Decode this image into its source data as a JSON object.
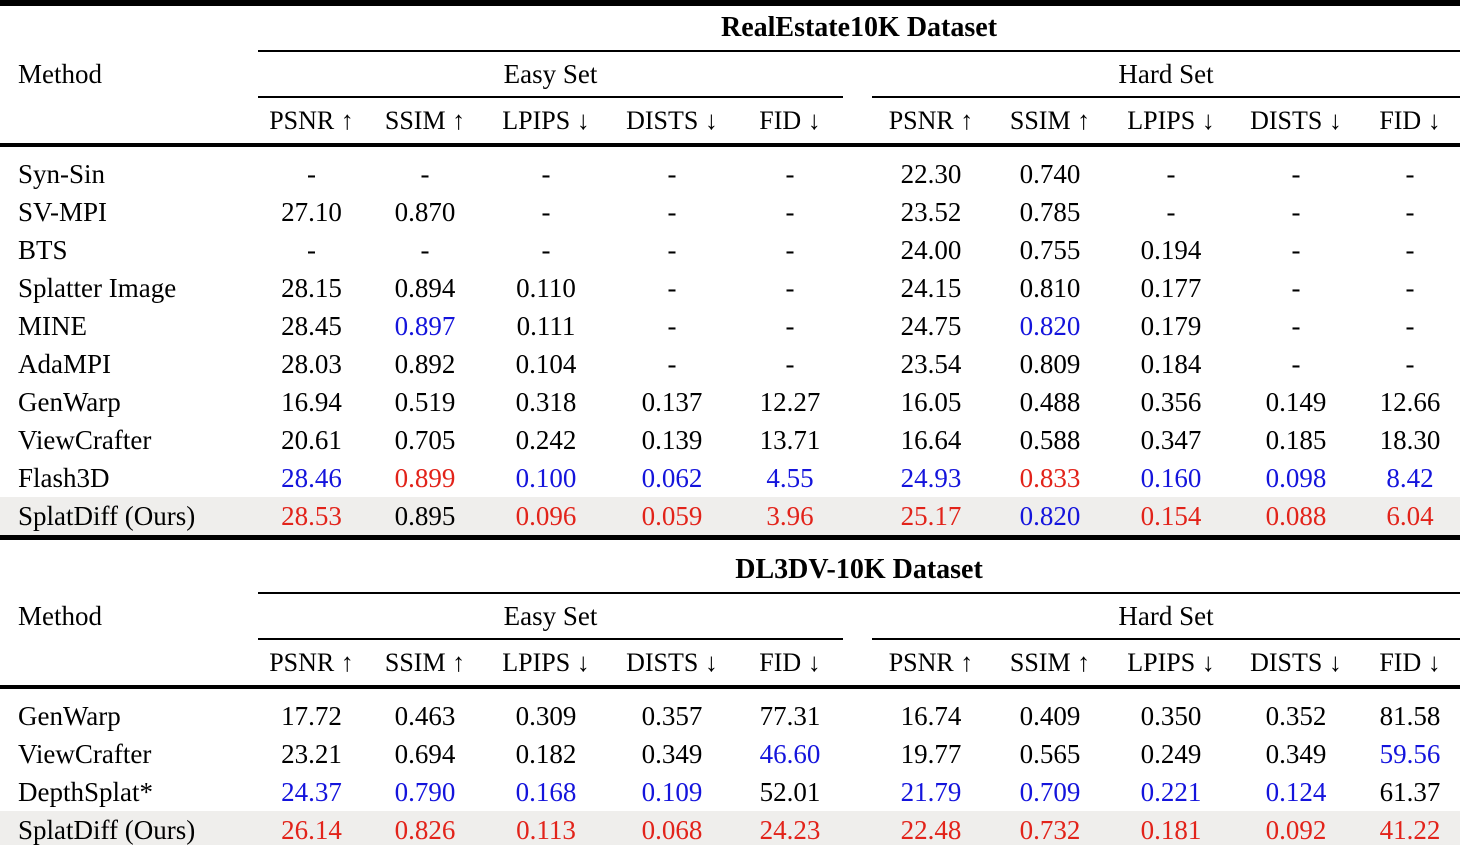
{
  "colors": {
    "red": "#e2231a",
    "blue": "#1414dc",
    "text": "#000000",
    "highlight_row": "#efeeec",
    "background": "#ffffff"
  },
  "method_header": "Method",
  "set_headers": [
    "Easy Set",
    "Hard Set"
  ],
  "metrics": [
    "PSNR ↑",
    "SSIM ↑",
    "LPIPS ↓",
    "DISTS ↓",
    "FID ↓"
  ],
  "tables": [
    {
      "dataset_title": "RealEstate10K Dataset",
      "rows": [
        {
          "method": "Syn-Sin",
          "highlight": false,
          "values": [
            {
              "t": "-"
            },
            {
              "t": "-"
            },
            {
              "t": "-"
            },
            {
              "t": "-"
            },
            {
              "t": "-"
            },
            {
              "t": "22.30"
            },
            {
              "t": "0.740"
            },
            {
              "t": "-"
            },
            {
              "t": "-"
            },
            {
              "t": "-"
            }
          ]
        },
        {
          "method": "SV-MPI",
          "highlight": false,
          "values": [
            {
              "t": "27.10"
            },
            {
              "t": "0.870"
            },
            {
              "t": "-"
            },
            {
              "t": "-"
            },
            {
              "t": "-"
            },
            {
              "t": "23.52"
            },
            {
              "t": "0.785"
            },
            {
              "t": "-"
            },
            {
              "t": "-"
            },
            {
              "t": "-"
            }
          ]
        },
        {
          "method": "BTS",
          "highlight": false,
          "values": [
            {
              "t": "-"
            },
            {
              "t": "-"
            },
            {
              "t": "-"
            },
            {
              "t": "-"
            },
            {
              "t": "-"
            },
            {
              "t": "24.00"
            },
            {
              "t": "0.755"
            },
            {
              "t": "0.194"
            },
            {
              "t": "-"
            },
            {
              "t": "-"
            }
          ]
        },
        {
          "method": "Splatter Image",
          "highlight": false,
          "values": [
            {
              "t": "28.15"
            },
            {
              "t": "0.894"
            },
            {
              "t": "0.110"
            },
            {
              "t": "-"
            },
            {
              "t": "-"
            },
            {
              "t": "24.15"
            },
            {
              "t": "0.810"
            },
            {
              "t": "0.177"
            },
            {
              "t": "-"
            },
            {
              "t": "-"
            }
          ]
        },
        {
          "method": "MINE",
          "highlight": false,
          "values": [
            {
              "t": "28.45"
            },
            {
              "t": "0.897",
              "c": "blue"
            },
            {
              "t": "0.111"
            },
            {
              "t": "-"
            },
            {
              "t": "-"
            },
            {
              "t": "24.75"
            },
            {
              "t": "0.820",
              "c": "blue"
            },
            {
              "t": "0.179"
            },
            {
              "t": "-"
            },
            {
              "t": "-"
            }
          ]
        },
        {
          "method": "AdaMPI",
          "highlight": false,
          "values": [
            {
              "t": "28.03"
            },
            {
              "t": "0.892"
            },
            {
              "t": "0.104"
            },
            {
              "t": "-"
            },
            {
              "t": "-"
            },
            {
              "t": "23.54"
            },
            {
              "t": "0.809"
            },
            {
              "t": "0.184"
            },
            {
              "t": "-"
            },
            {
              "t": "-"
            }
          ]
        },
        {
          "method": "GenWarp",
          "highlight": false,
          "values": [
            {
              "t": "16.94"
            },
            {
              "t": "0.519"
            },
            {
              "t": "0.318"
            },
            {
              "t": "0.137"
            },
            {
              "t": "12.27"
            },
            {
              "t": "16.05"
            },
            {
              "t": "0.488"
            },
            {
              "t": "0.356"
            },
            {
              "t": "0.149"
            },
            {
              "t": "12.66"
            }
          ]
        },
        {
          "method": "ViewCrafter",
          "highlight": false,
          "values": [
            {
              "t": "20.61"
            },
            {
              "t": "0.705"
            },
            {
              "t": "0.242"
            },
            {
              "t": "0.139"
            },
            {
              "t": "13.71"
            },
            {
              "t": "16.64"
            },
            {
              "t": "0.588"
            },
            {
              "t": "0.347"
            },
            {
              "t": "0.185"
            },
            {
              "t": "18.30"
            }
          ]
        },
        {
          "method": "Flash3D",
          "highlight": false,
          "values": [
            {
              "t": "28.46",
              "c": "blue"
            },
            {
              "t": "0.899",
              "c": "red"
            },
            {
              "t": "0.100",
              "c": "blue"
            },
            {
              "t": "0.062",
              "c": "blue"
            },
            {
              "t": "4.55",
              "c": "blue"
            },
            {
              "t": "24.93",
              "c": "blue"
            },
            {
              "t": "0.833",
              "c": "red"
            },
            {
              "t": "0.160",
              "c": "blue"
            },
            {
              "t": "0.098",
              "c": "blue"
            },
            {
              "t": "8.42",
              "c": "blue"
            }
          ]
        },
        {
          "method": "SplatDiff (Ours)",
          "highlight": true,
          "values": [
            {
              "t": "28.53",
              "c": "red"
            },
            {
              "t": "0.895"
            },
            {
              "t": "0.096",
              "c": "red"
            },
            {
              "t": "0.059",
              "c": "red"
            },
            {
              "t": "3.96",
              "c": "red"
            },
            {
              "t": "25.17",
              "c": "red"
            },
            {
              "t": "0.820",
              "c": "blue"
            },
            {
              "t": "0.154",
              "c": "red"
            },
            {
              "t": "0.088",
              "c": "red"
            },
            {
              "t": "6.04",
              "c": "red"
            }
          ]
        }
      ]
    },
    {
      "dataset_title": "DL3DV-10K Dataset",
      "rows": [
        {
          "method": "GenWarp",
          "highlight": false,
          "values": [
            {
              "t": "17.72"
            },
            {
              "t": "0.463"
            },
            {
              "t": "0.309"
            },
            {
              "t": "0.357"
            },
            {
              "t": "77.31"
            },
            {
              "t": "16.74"
            },
            {
              "t": "0.409"
            },
            {
              "t": "0.350"
            },
            {
              "t": "0.352"
            },
            {
              "t": "81.58"
            }
          ]
        },
        {
          "method": "ViewCrafter",
          "highlight": false,
          "values": [
            {
              "t": "23.21"
            },
            {
              "t": "0.694"
            },
            {
              "t": "0.182"
            },
            {
              "t": "0.349"
            },
            {
              "t": "46.60",
              "c": "blue"
            },
            {
              "t": "19.77"
            },
            {
              "t": "0.565"
            },
            {
              "t": "0.249"
            },
            {
              "t": "0.349"
            },
            {
              "t": "59.56",
              "c": "blue"
            }
          ]
        },
        {
          "method": "DepthSplat*",
          "highlight": false,
          "values": [
            {
              "t": "24.37",
              "c": "blue"
            },
            {
              "t": "0.790",
              "c": "blue"
            },
            {
              "t": "0.168",
              "c": "blue"
            },
            {
              "t": "0.109",
              "c": "blue"
            },
            {
              "t": "52.01"
            },
            {
              "t": "21.79",
              "c": "blue"
            },
            {
              "t": "0.709",
              "c": "blue"
            },
            {
              "t": "0.221",
              "c": "blue"
            },
            {
              "t": "0.124",
              "c": "blue"
            },
            {
              "t": "61.37"
            }
          ]
        },
        {
          "method": "SplatDiff (Ours)",
          "highlight": true,
          "values": [
            {
              "t": "26.14",
              "c": "red"
            },
            {
              "t": "0.826",
              "c": "red"
            },
            {
              "t": "0.113",
              "c": "red"
            },
            {
              "t": "0.068",
              "c": "red"
            },
            {
              "t": "24.23",
              "c": "red"
            },
            {
              "t": "22.48",
              "c": "red"
            },
            {
              "t": "0.732",
              "c": "red"
            },
            {
              "t": "0.181",
              "c": "red"
            },
            {
              "t": "0.092",
              "c": "red"
            },
            {
              "t": "41.22",
              "c": "red"
            }
          ]
        }
      ]
    }
  ]
}
